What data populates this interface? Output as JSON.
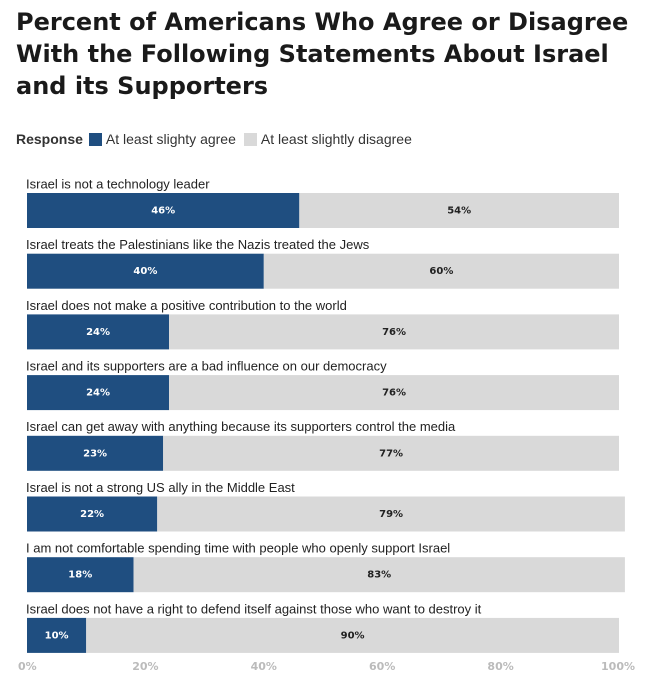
{
  "chart_data": {
    "type": "bar",
    "orientation": "horizontal",
    "stacked": true,
    "title": "Percent of Americans Who Agree or Disagree With the Following Statements About Israel and its Supporters",
    "legend_title": "Response",
    "legend_placement": "top-left",
    "categories": [
      "Israel is not a technology leader",
      "Israel treats the Palestinians like the Nazis treated the Jews",
      "Israel does not make a positive contribution to the world",
      "Israel and its supporters are a bad influence on our democracy",
      "Israel can get away with anything because its supporters control the media",
      "Israel is not a strong US ally in the Middle East",
      "I am not comfortable spending time with people who openly support Israel",
      "Israel does not have a right to defend itself against those who want to destroy it"
    ],
    "series": [
      {
        "name": "At least slighty agree",
        "color": "#1f4e80",
        "label_color": "#ffffff",
        "values": [
          46,
          40,
          24,
          24,
          23,
          22,
          18,
          10
        ]
      },
      {
        "name": "At least slightly disagree",
        "color": "#d9d9d9",
        "label_color": "#222222",
        "values": [
          54,
          60,
          76,
          76,
          77,
          79,
          83,
          90
        ]
      }
    ],
    "value_suffix": "%",
    "xlim": [
      0,
      100
    ],
    "xticks": [
      "0%",
      "20%",
      "40%",
      "60%",
      "80%",
      "100%"
    ],
    "grid": false
  }
}
